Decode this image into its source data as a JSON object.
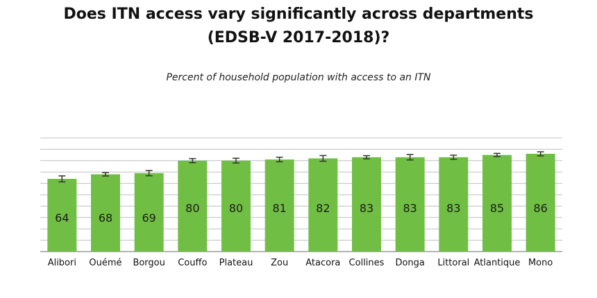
{
  "chart_data": {
    "type": "bar",
    "title": "Does ITN access vary significantly across departments (EDSB-V 2017-2018)?",
    "title_lines": [
      "Does ITN access vary significantly across departments",
      "(EDSB-V 2017-2018)?"
    ],
    "subtitle": "Percent of household population with access to an ITN",
    "categories": [
      "Alibori",
      "Ouémé",
      "Borgou",
      "Couffo",
      "Plateau",
      "Zou",
      "Atacora",
      "Collines",
      "Donga",
      "Littoral",
      "Atlantique",
      "Mono"
    ],
    "values": [
      64,
      68,
      69,
      80,
      80,
      81,
      82,
      83,
      83,
      83,
      85,
      86
    ],
    "error_low": [
      61.3,
      66.5,
      66.7,
      78.2,
      77.9,
      79.0,
      79.5,
      81.6,
      80.6,
      81.2,
      83.6,
      84.2
    ],
    "error_high": [
      66.6,
      69.5,
      71.3,
      81.8,
      82.1,
      83.0,
      84.5,
      84.4,
      85.4,
      84.8,
      86.4,
      87.8
    ],
    "ylim": [
      0,
      100
    ],
    "grid": true,
    "legend": "none",
    "xlabel": "",
    "ylabel": "",
    "colors": {
      "bar": "#70bf44",
      "grid": "#bfbfbf",
      "error": "#333333",
      "axis": "#888888"
    }
  }
}
